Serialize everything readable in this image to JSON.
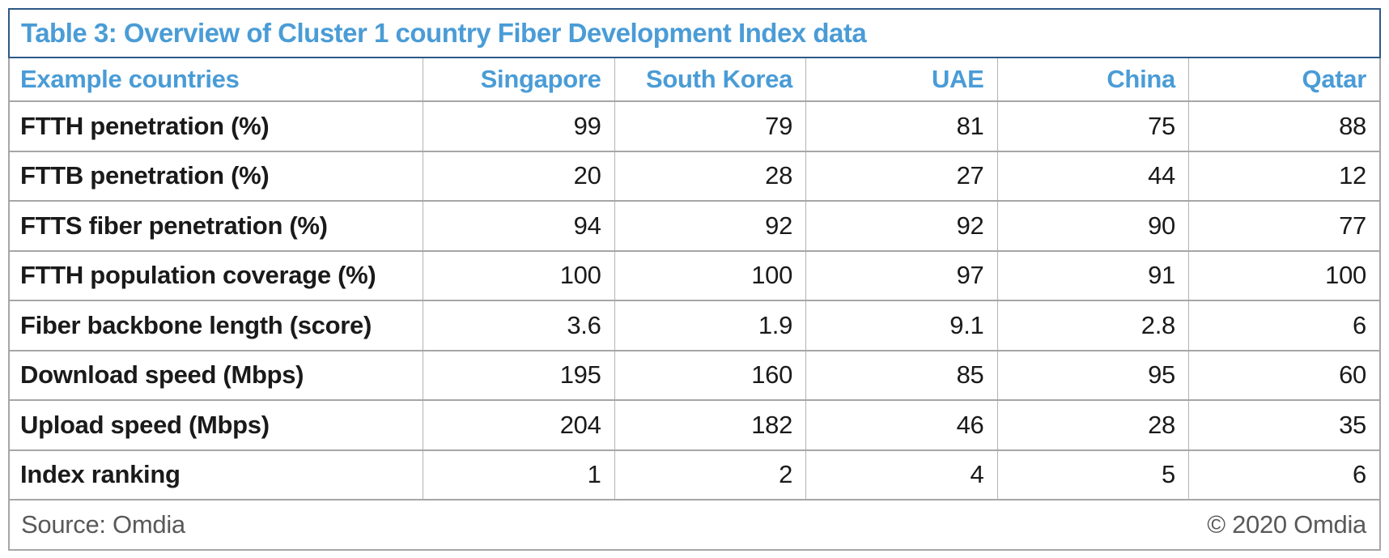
{
  "title": "Table 3: Overview of Cluster 1 country Fiber Development Index data",
  "header": {
    "label": "Example countries",
    "columns": [
      "Singapore",
      "South Korea",
      "UAE",
      "China",
      "Qatar"
    ]
  },
  "chart_data": {
    "type": "table",
    "title": "Table 3: Overview of Cluster 1 country Fiber Development Index data",
    "categories": [
      "Singapore",
      "South Korea",
      "UAE",
      "China",
      "Qatar"
    ],
    "series": [
      {
        "name": "FTTH penetration (%)",
        "values": [
          99,
          79,
          81,
          75,
          88
        ]
      },
      {
        "name": "FTTB penetration (%)",
        "values": [
          20,
          28,
          27,
          44,
          12
        ]
      },
      {
        "name": "FTTS fiber penetration (%)",
        "values": [
          94,
          92,
          92,
          90,
          77
        ]
      },
      {
        "name": "FTTH population coverage (%)",
        "values": [
          100,
          100,
          97,
          91,
          100
        ]
      },
      {
        "name": "Fiber backbone length (score)",
        "values": [
          3.6,
          1.9,
          9.1,
          2.8,
          6
        ]
      },
      {
        "name": "Download speed (Mbps)",
        "values": [
          195,
          160,
          85,
          95,
          60
        ]
      },
      {
        "name": "Upload speed (Mbps)",
        "values": [
          204,
          182,
          46,
          28,
          35
        ]
      },
      {
        "name": "Index ranking",
        "values": [
          1,
          2,
          4,
          5,
          6
        ]
      }
    ],
    "source": "Source: Omdia",
    "copyright": "© 2020 Omdia"
  },
  "footer": {
    "source": "Source: Omdia",
    "copyright": "© 2020 Omdia"
  },
  "colors": {
    "accent_blue": "#4a9cd6",
    "title_border_blue": "#2d5986",
    "grid_gray": "#a6a6a6",
    "text_black": "#1a1a1a",
    "footer_gray": "#595959"
  }
}
